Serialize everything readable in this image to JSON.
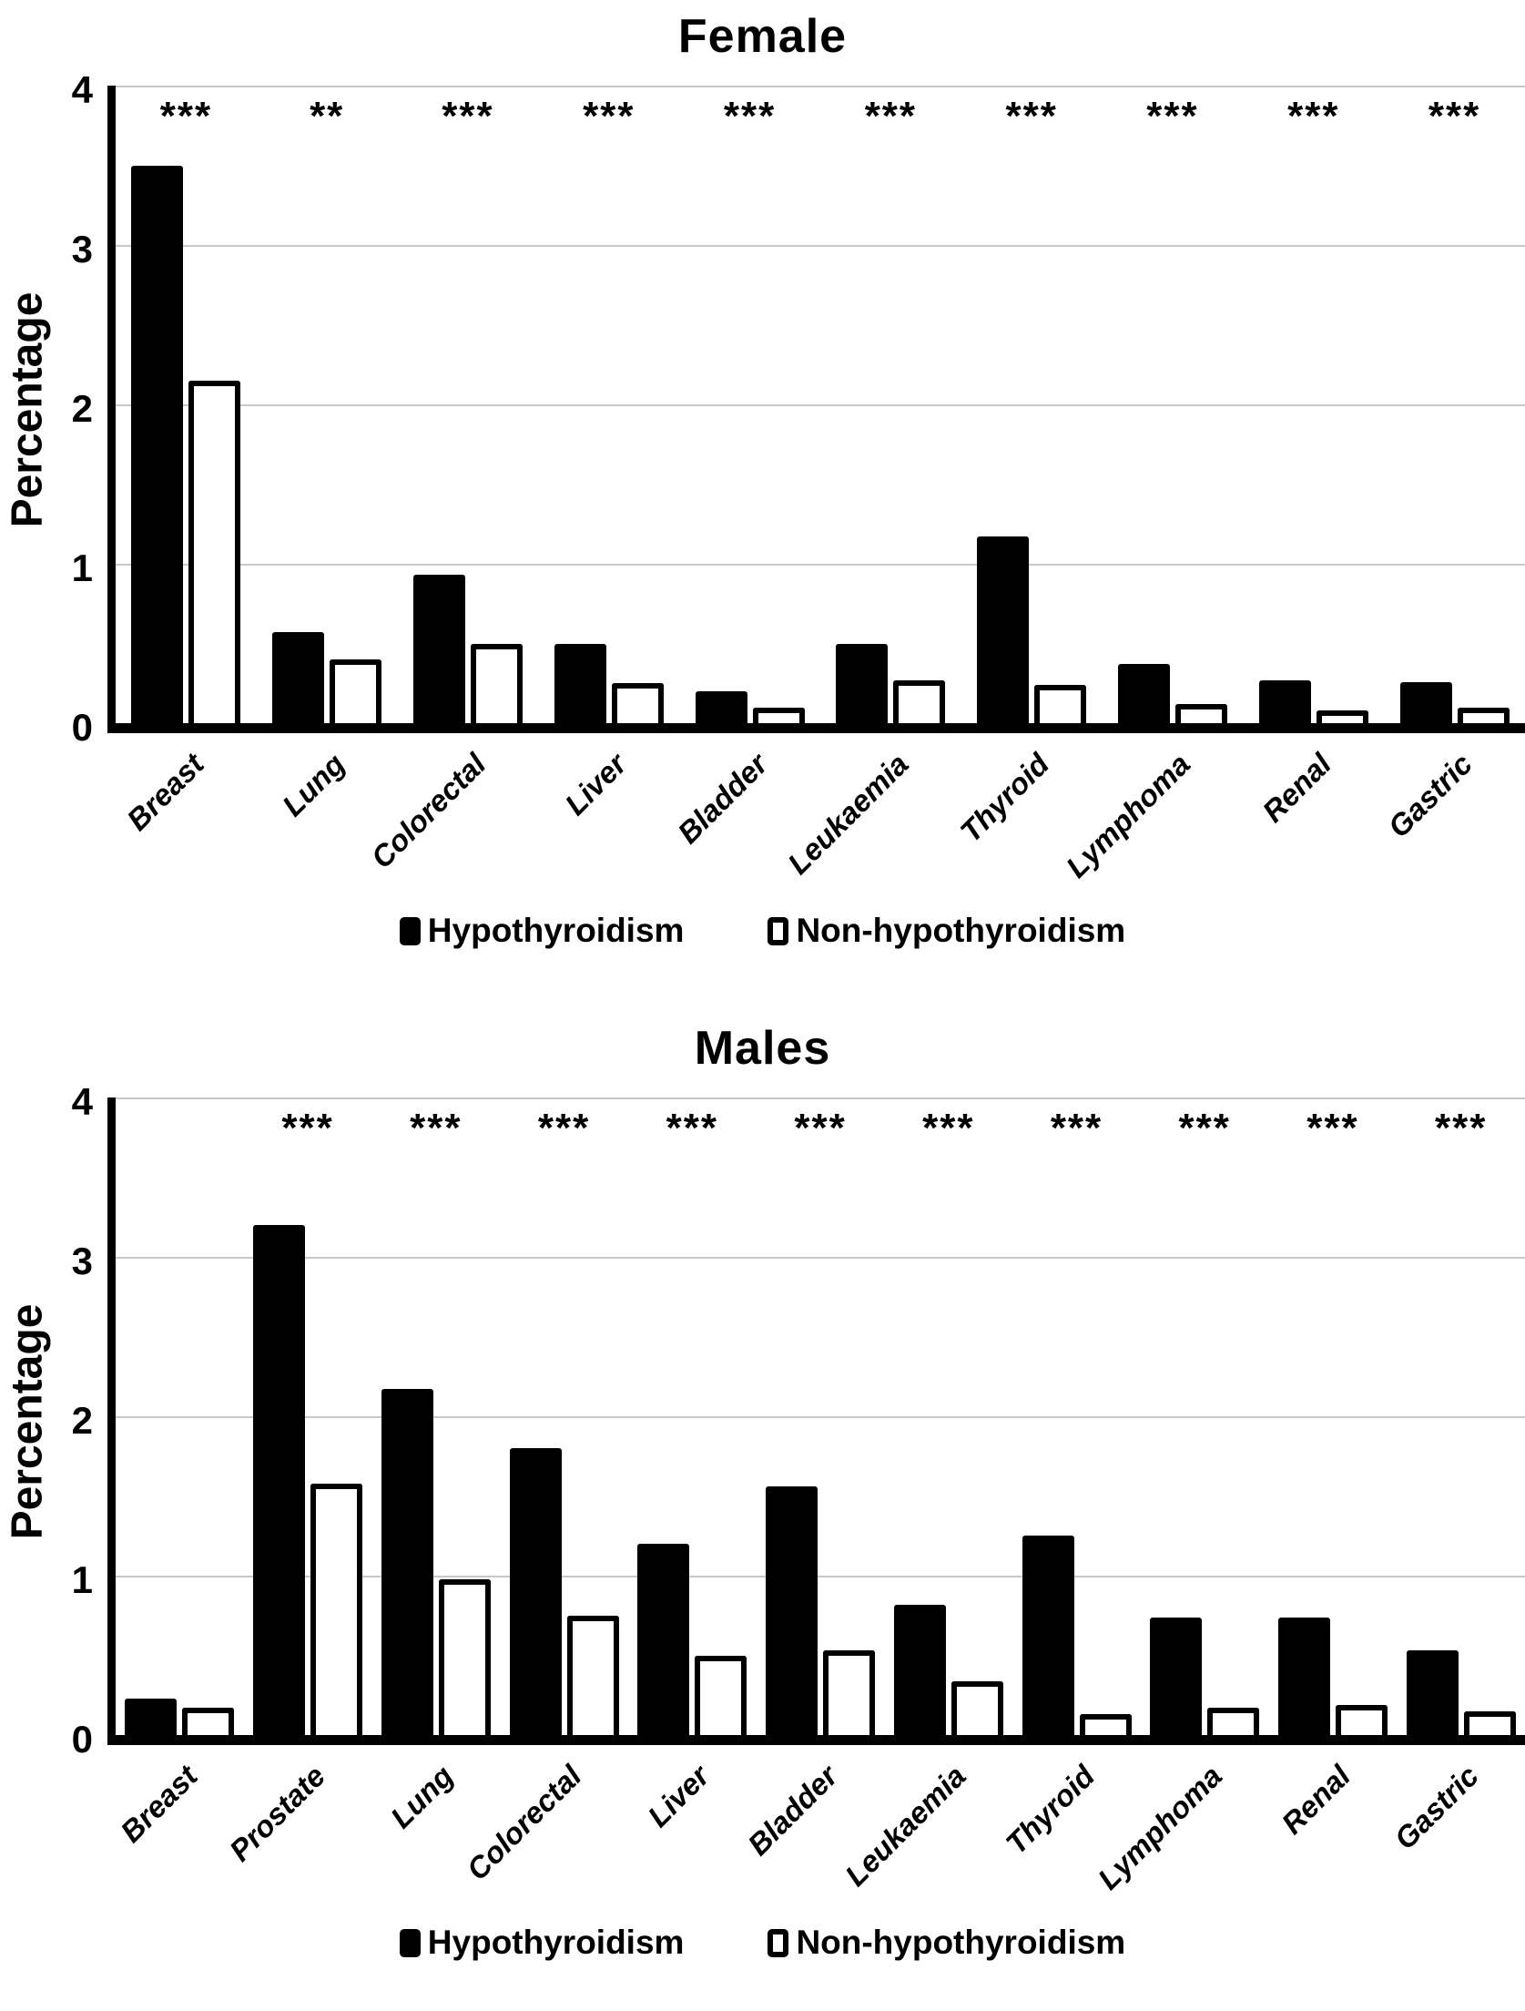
{
  "colors": {
    "ink": "#000000",
    "paper": "#ffffff",
    "gridline": "#c8c8c8"
  },
  "chart_data": [
    {
      "type": "bar",
      "title": "Female",
      "ylabel": "Percentage",
      "ylim": [
        0,
        4
      ],
      "yticks": [
        0,
        1,
        2,
        3,
        4
      ],
      "grid": "horizontal-gray-lines",
      "legend_position": "bottom",
      "categories": [
        "Breast",
        "Lung",
        "Colorectal",
        "Liver",
        "Bladder",
        "Leukaemia",
        "Thyroid",
        "Lymphoma",
        "Renal",
        "Gastric"
      ],
      "significance": [
        "***",
        "**",
        "***",
        "***",
        "***",
        "***",
        "***",
        "***",
        "***",
        "***"
      ],
      "series": [
        {
          "name": "Hypothyroidism",
          "style": "filled-black",
          "values": [
            3.5,
            0.57,
            0.93,
            0.5,
            0.2,
            0.5,
            1.17,
            0.37,
            0.27,
            0.26
          ]
        },
        {
          "name": "Non-hypothyroidism",
          "style": "open-white",
          "values": [
            2.15,
            0.4,
            0.5,
            0.25,
            0.1,
            0.27,
            0.24,
            0.12,
            0.08,
            0.1
          ]
        }
      ]
    },
    {
      "type": "bar",
      "title": "Males",
      "ylabel": "Percentage",
      "ylim": [
        0,
        4
      ],
      "yticks": [
        0,
        1,
        2,
        3,
        4
      ],
      "grid": "horizontal-gray-lines",
      "legend_position": "bottom",
      "categories": [
        "Breast",
        "Prostate",
        "Lung",
        "Colorectal",
        "Liver",
        "Bladder",
        "Leukaemia",
        "Thyroid",
        "Lymphoma",
        "Renal",
        "Gastric"
      ],
      "significance": [
        "",
        "***",
        "***",
        "***",
        "***",
        "***",
        "***",
        "***",
        "***",
        "***",
        "***"
      ],
      "series": [
        {
          "name": "Hypothyroidism",
          "style": "filled-black",
          "values": [
            0.23,
            3.2,
            2.17,
            1.8,
            1.2,
            1.56,
            0.82,
            1.25,
            0.74,
            0.74,
            0.53
          ]
        },
        {
          "name": "Non-hypothyroidism",
          "style": "open-white",
          "values": [
            0.17,
            1.58,
            0.98,
            0.75,
            0.5,
            0.53,
            0.34,
            0.13,
            0.17,
            0.19,
            0.15
          ]
        }
      ]
    }
  ]
}
